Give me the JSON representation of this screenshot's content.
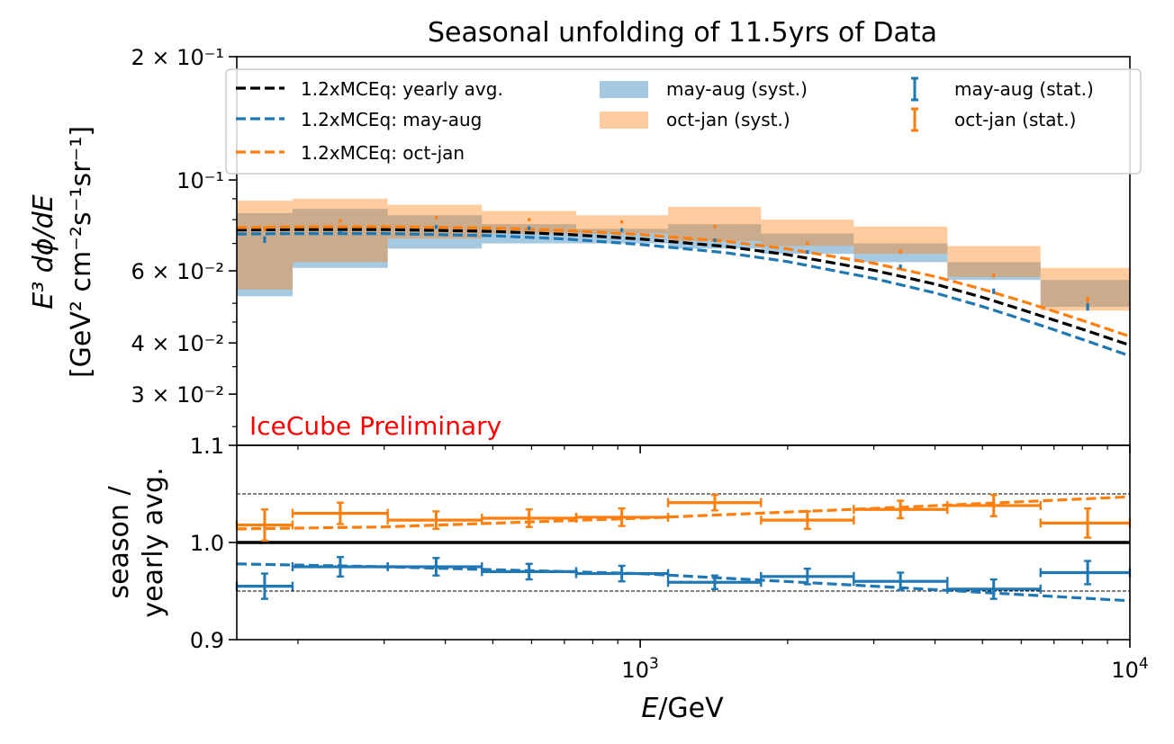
{
  "chart_data": {
    "type": "line",
    "title": "Seasonal unfolding of 11.5yrs of Data",
    "xlabel": "E/GeV",
    "x_scale": "log",
    "xlim": [
      150,
      10000
    ],
    "x_tick_labels": [
      "10",
      "3",
      "10",
      "4"
    ],
    "annotation": "IceCube Preliminary",
    "colors": {
      "yearly": "#000000",
      "mayaug": "#1f77b4",
      "octjan": "#ff7f0e",
      "annotation": "#ff0000"
    },
    "legend": {
      "placement": "top",
      "entries": [
        "1.2xMCEq: yearly avg.",
        "1.2xMCEq: may-aug",
        "1.2xMCEq: oct-jan",
        "may-aug (syst.)",
        "oct-jan (syst.)",
        "may-aug (stat.)",
        "oct-jan (stat.)"
      ]
    },
    "bin_edges": [
      150,
      195,
      305,
      475,
      740,
      1140,
      1765,
      2730,
      4240,
      6570,
      10000
    ],
    "main": {
      "ylabel_line1": "E³ dϕ/dE",
      "ylabel_line2": "[GeV² cm⁻²s⁻¹sr⁻¹]",
      "y_scale": "log",
      "ylim": [
        0.0225,
        0.2
      ],
      "y_ticks": [
        {
          "value": 0.2,
          "label": "2 × 10⁻¹"
        },
        {
          "value": 0.1,
          "label": "10⁻¹"
        },
        {
          "value": 0.06,
          "label": "6 × 10⁻²"
        },
        {
          "value": 0.04,
          "label": "4 × 10⁻²"
        },
        {
          "value": 0.03,
          "label": "3 × 10⁻²"
        }
      ],
      "model_x": [
        150,
        200,
        300,
        500,
        700,
        1000,
        1500,
        2000,
        3000,
        4000,
        5000,
        6000,
        7000,
        8000,
        10000
      ],
      "series": [
        {
          "key": "yearly",
          "name": "1.2xMCEq: yearly avg.",
          "values": [
            0.0755,
            0.0757,
            0.0757,
            0.0749,
            0.0737,
            0.0718,
            0.0688,
            0.0657,
            0.0602,
            0.0557,
            0.0517,
            0.0483,
            0.0455,
            0.0432,
            0.0395
          ]
        },
        {
          "key": "mayaug",
          "name": "1.2xMCEq: may-aug",
          "values": [
            0.0738,
            0.074,
            0.074,
            0.0731,
            0.0718,
            0.0696,
            0.0664,
            0.0632,
            0.0575,
            0.053,
            0.0491,
            0.0458,
            0.0431,
            0.0408,
            0.0372
          ]
        },
        {
          "key": "octjan",
          "name": "1.2xMCEq: oct-jan",
          "values": [
            0.0765,
            0.0768,
            0.0769,
            0.0763,
            0.0753,
            0.0736,
            0.0708,
            0.0679,
            0.0626,
            0.0581,
            0.0541,
            0.0507,
            0.0478,
            0.0454,
            0.0415
          ]
        }
      ],
      "syst_bands": [
        {
          "key": "mayaug",
          "name": "may-aug (syst.)",
          "low": [
            0.052,
            0.061,
            0.068,
            0.07,
            0.07,
            0.068,
            0.066,
            0.063,
            0.057,
            0.049
          ],
          "high": [
            0.083,
            0.085,
            0.082,
            0.078,
            0.076,
            0.078,
            0.074,
            0.07,
            0.063,
            0.057
          ]
        },
        {
          "key": "octjan",
          "name": "oct-jan (syst.)",
          "low": [
            0.054,
            0.063,
            0.072,
            0.074,
            0.074,
            0.071,
            0.069,
            0.066,
            0.058,
            0.048
          ],
          "high": [
            0.089,
            0.09,
            0.087,
            0.084,
            0.082,
            0.086,
            0.08,
            0.077,
            0.069,
            0.061
          ]
        }
      ],
      "stat_points": [
        {
          "key": "mayaug",
          "name": "may-aug (stat.)",
          "x": [
            171,
            244,
            383,
            593,
            917,
            1420,
            2195,
            3400,
            5270,
            8200
          ],
          "y": [
            0.0715,
            0.0743,
            0.0768,
            0.0763,
            0.0755,
            0.0713,
            0.0667,
            0.0615,
            0.0535,
            0.049
          ],
          "err": [
            0.0013,
            0.0009,
            0.0008,
            0.0008,
            0.0008,
            0.0007,
            0.0007,
            0.0007,
            0.0008,
            0.001
          ]
        },
        {
          "key": "octjan",
          "name": "oct-jan (stat.)",
          "x": [
            171,
            244,
            383,
            593,
            917,
            1420,
            2195,
            3400,
            5270,
            8200
          ],
          "y": [
            0.076,
            0.0795,
            0.081,
            0.08,
            0.079,
            0.077,
            0.07,
            0.067,
            0.0585,
            0.051
          ],
          "err": [
            0.001,
            0.0008,
            0.0007,
            0.0007,
            0.0007,
            0.0007,
            0.0007,
            0.0007,
            0.0007,
            0.0009
          ]
        }
      ]
    },
    "ratio": {
      "ylabel_line1": "season /",
      "ylabel_line2": "yearly avg.",
      "ylim": [
        0.9,
        1.1
      ],
      "y_ticks": [
        {
          "value": 1.1,
          "label": "1.1"
        },
        {
          "value": 1.0,
          "label": "1.0"
        },
        {
          "value": 0.9,
          "label": "0.9"
        }
      ],
      "reference_lines": [
        0.95,
        1.05
      ],
      "unity_line": 1.0,
      "model_ratio": [
        {
          "key": "octjan",
          "x": [
            150,
            300,
            1000,
            3000,
            10000
          ],
          "values": [
            1.014,
            1.016,
            1.025,
            1.035,
            1.047
          ]
        },
        {
          "key": "mayaug",
          "x": [
            150,
            300,
            1000,
            3000,
            10000
          ],
          "values": [
            0.978,
            0.975,
            0.968,
            0.955,
            0.94
          ]
        }
      ],
      "ratio_points": [
        {
          "key": "octjan",
          "y": [
            1.018,
            1.03,
            1.023,
            1.025,
            1.026,
            1.041,
            1.023,
            1.034,
            1.038,
            1.02
          ],
          "err": [
            0.016,
            0.011,
            0.009,
            0.009,
            0.009,
            0.008,
            0.009,
            0.009,
            0.011,
            0.015
          ]
        },
        {
          "key": "mayaug",
          "y": [
            0.955,
            0.975,
            0.975,
            0.97,
            0.968,
            0.959,
            0.965,
            0.96,
            0.952,
            0.969
          ],
          "err": [
            0.013,
            0.01,
            0.009,
            0.008,
            0.008,
            0.007,
            0.008,
            0.009,
            0.01,
            0.012
          ]
        }
      ]
    }
  }
}
